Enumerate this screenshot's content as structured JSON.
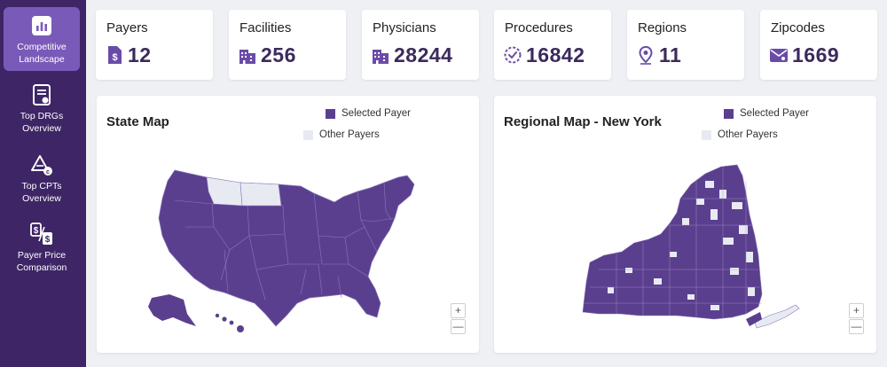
{
  "sidebar": {
    "items": [
      {
        "label": "Competitive Landscape",
        "icon": "bar-chart-icon",
        "active": true
      },
      {
        "label": "Top DRGs Overview",
        "icon": "document-icon",
        "active": false
      },
      {
        "label": "Top CPTs Overview",
        "icon": "triangle-c-icon",
        "active": false
      },
      {
        "label": "Payer Price Comparison",
        "icon": "dollar-compare-icon",
        "active": false
      }
    ]
  },
  "stats": [
    {
      "title": "Payers",
      "value": "12",
      "icon": "dollar-document-icon"
    },
    {
      "title": "Facilities",
      "value": "256",
      "icon": "building-icon"
    },
    {
      "title": "Physicians",
      "value": "28244",
      "icon": "building-icon"
    },
    {
      "title": "Procedures",
      "value": "16842",
      "icon": "check-circle-icon"
    },
    {
      "title": "Regions",
      "value": "11",
      "icon": "location-pin-icon"
    },
    {
      "title": "Zipcodes",
      "value": "1669",
      "icon": "mail-icon"
    }
  ],
  "state_map": {
    "title": "State Map",
    "legend_selected": "Selected Payer",
    "legend_other": "Other Payers",
    "zoom_in": "+",
    "zoom_out": "—"
  },
  "regional_map": {
    "title": "Regional Map - New York",
    "legend_selected": "Selected Payer",
    "legend_other": "Other Payers",
    "zoom_in": "+",
    "zoom_out": "—"
  },
  "colors": {
    "sidebar_bg": "#3e2566",
    "sidebar_active": "#7a5ab8",
    "selected_payer": "#5b3f8f",
    "other_payers": "#e8eaf2",
    "accent": "#6a4ca8",
    "value_text": "#3b2a5c"
  }
}
